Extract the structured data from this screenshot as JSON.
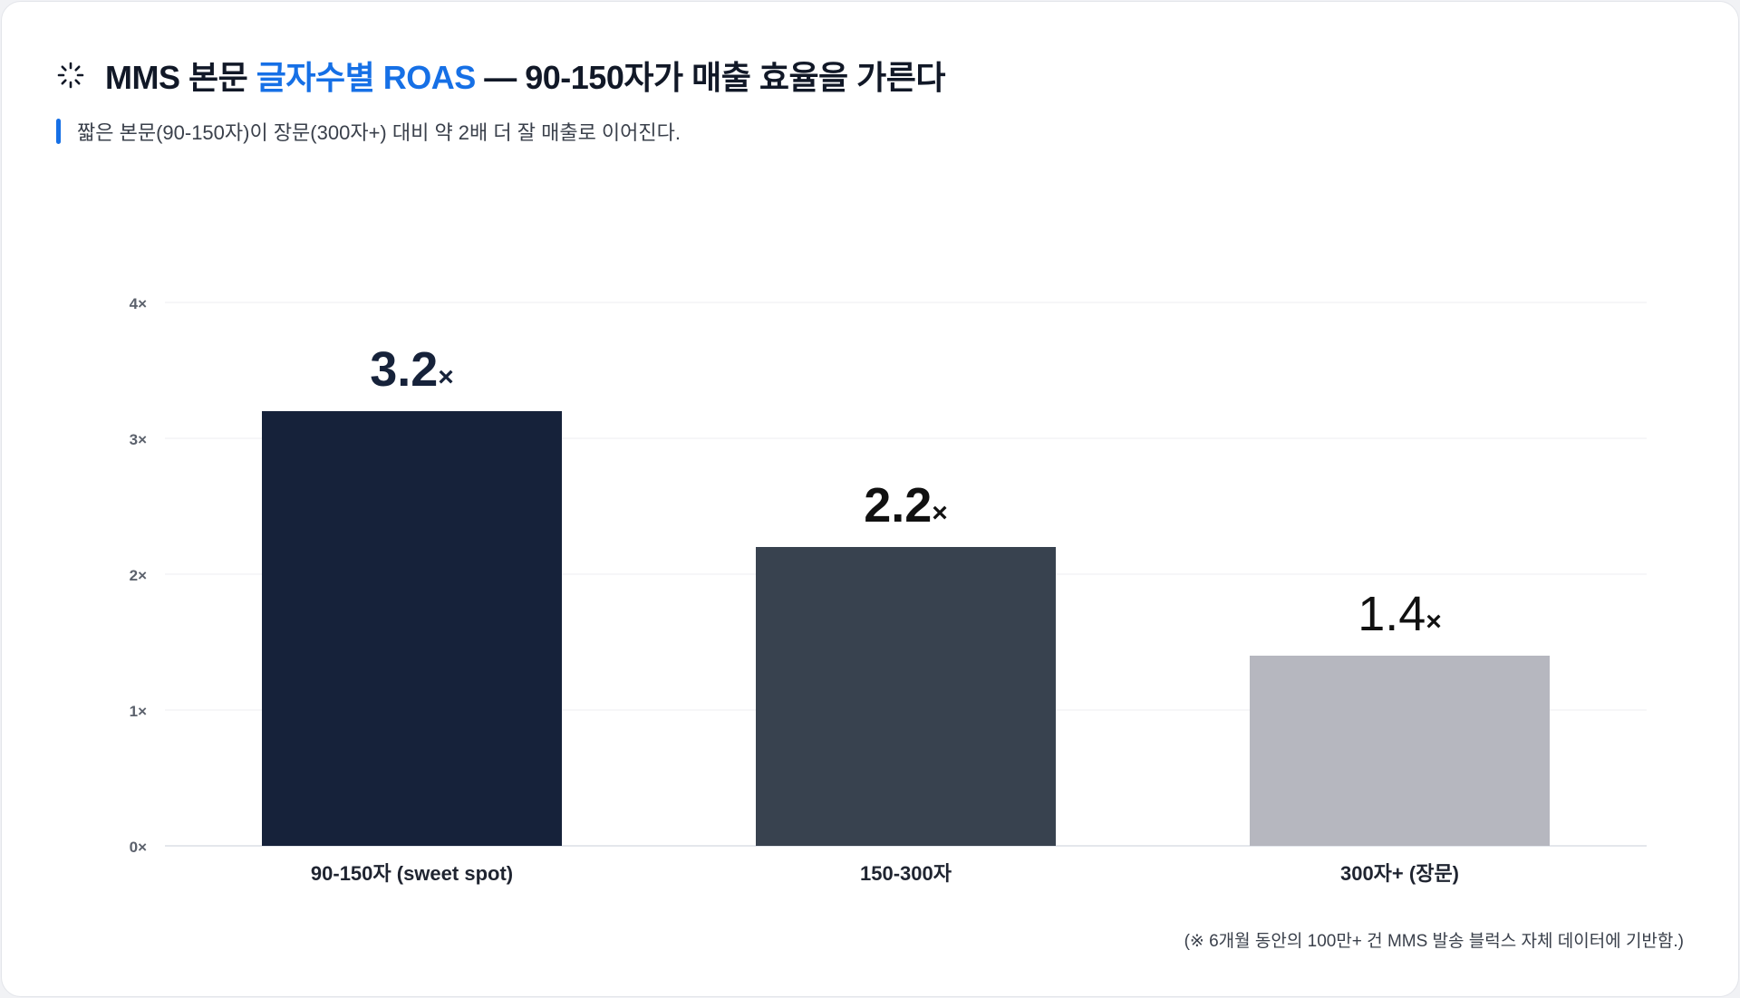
{
  "header": {
    "icon": "spinner-icon",
    "title_pre": "MMS 본문 ",
    "title_accent": "글자수별 ROAS",
    "title_post": " — 90-150자가 매출 효율을 가른다"
  },
  "subtitle": "짧은 본문(90-150자)이 장문(300자+) 대비 약 2배 더 잘 매출로 이어진다.",
  "footnote": "(※ 6개월 동안의 100만+ 건 MMS 발송 블럭스 자체 데이터에 기반함.)",
  "colors": {
    "accent": "#1670e6",
    "bars": [
      "#16223a",
      "#38424f",
      "#b6b7bf"
    ],
    "value_labels": [
      "#16223a",
      "#111111",
      "#111111"
    ]
  },
  "chart_data": {
    "type": "bar",
    "categories": [
      "90-150자 (sweet spot)",
      "150-300자",
      "300자+ (장문)"
    ],
    "values": [
      3.2,
      2.2,
      1.4
    ],
    "value_labels": [
      {
        "num": "3.2",
        "suffix": "×"
      },
      {
        "num": "2.2",
        "suffix": "×"
      },
      {
        "num": "1.4",
        "suffix": "×"
      }
    ],
    "yticks": [
      "0×",
      "1×",
      "2×",
      "3×",
      "4×"
    ],
    "ylim": [
      0,
      4
    ],
    "grid": true,
    "legend": "none"
  }
}
